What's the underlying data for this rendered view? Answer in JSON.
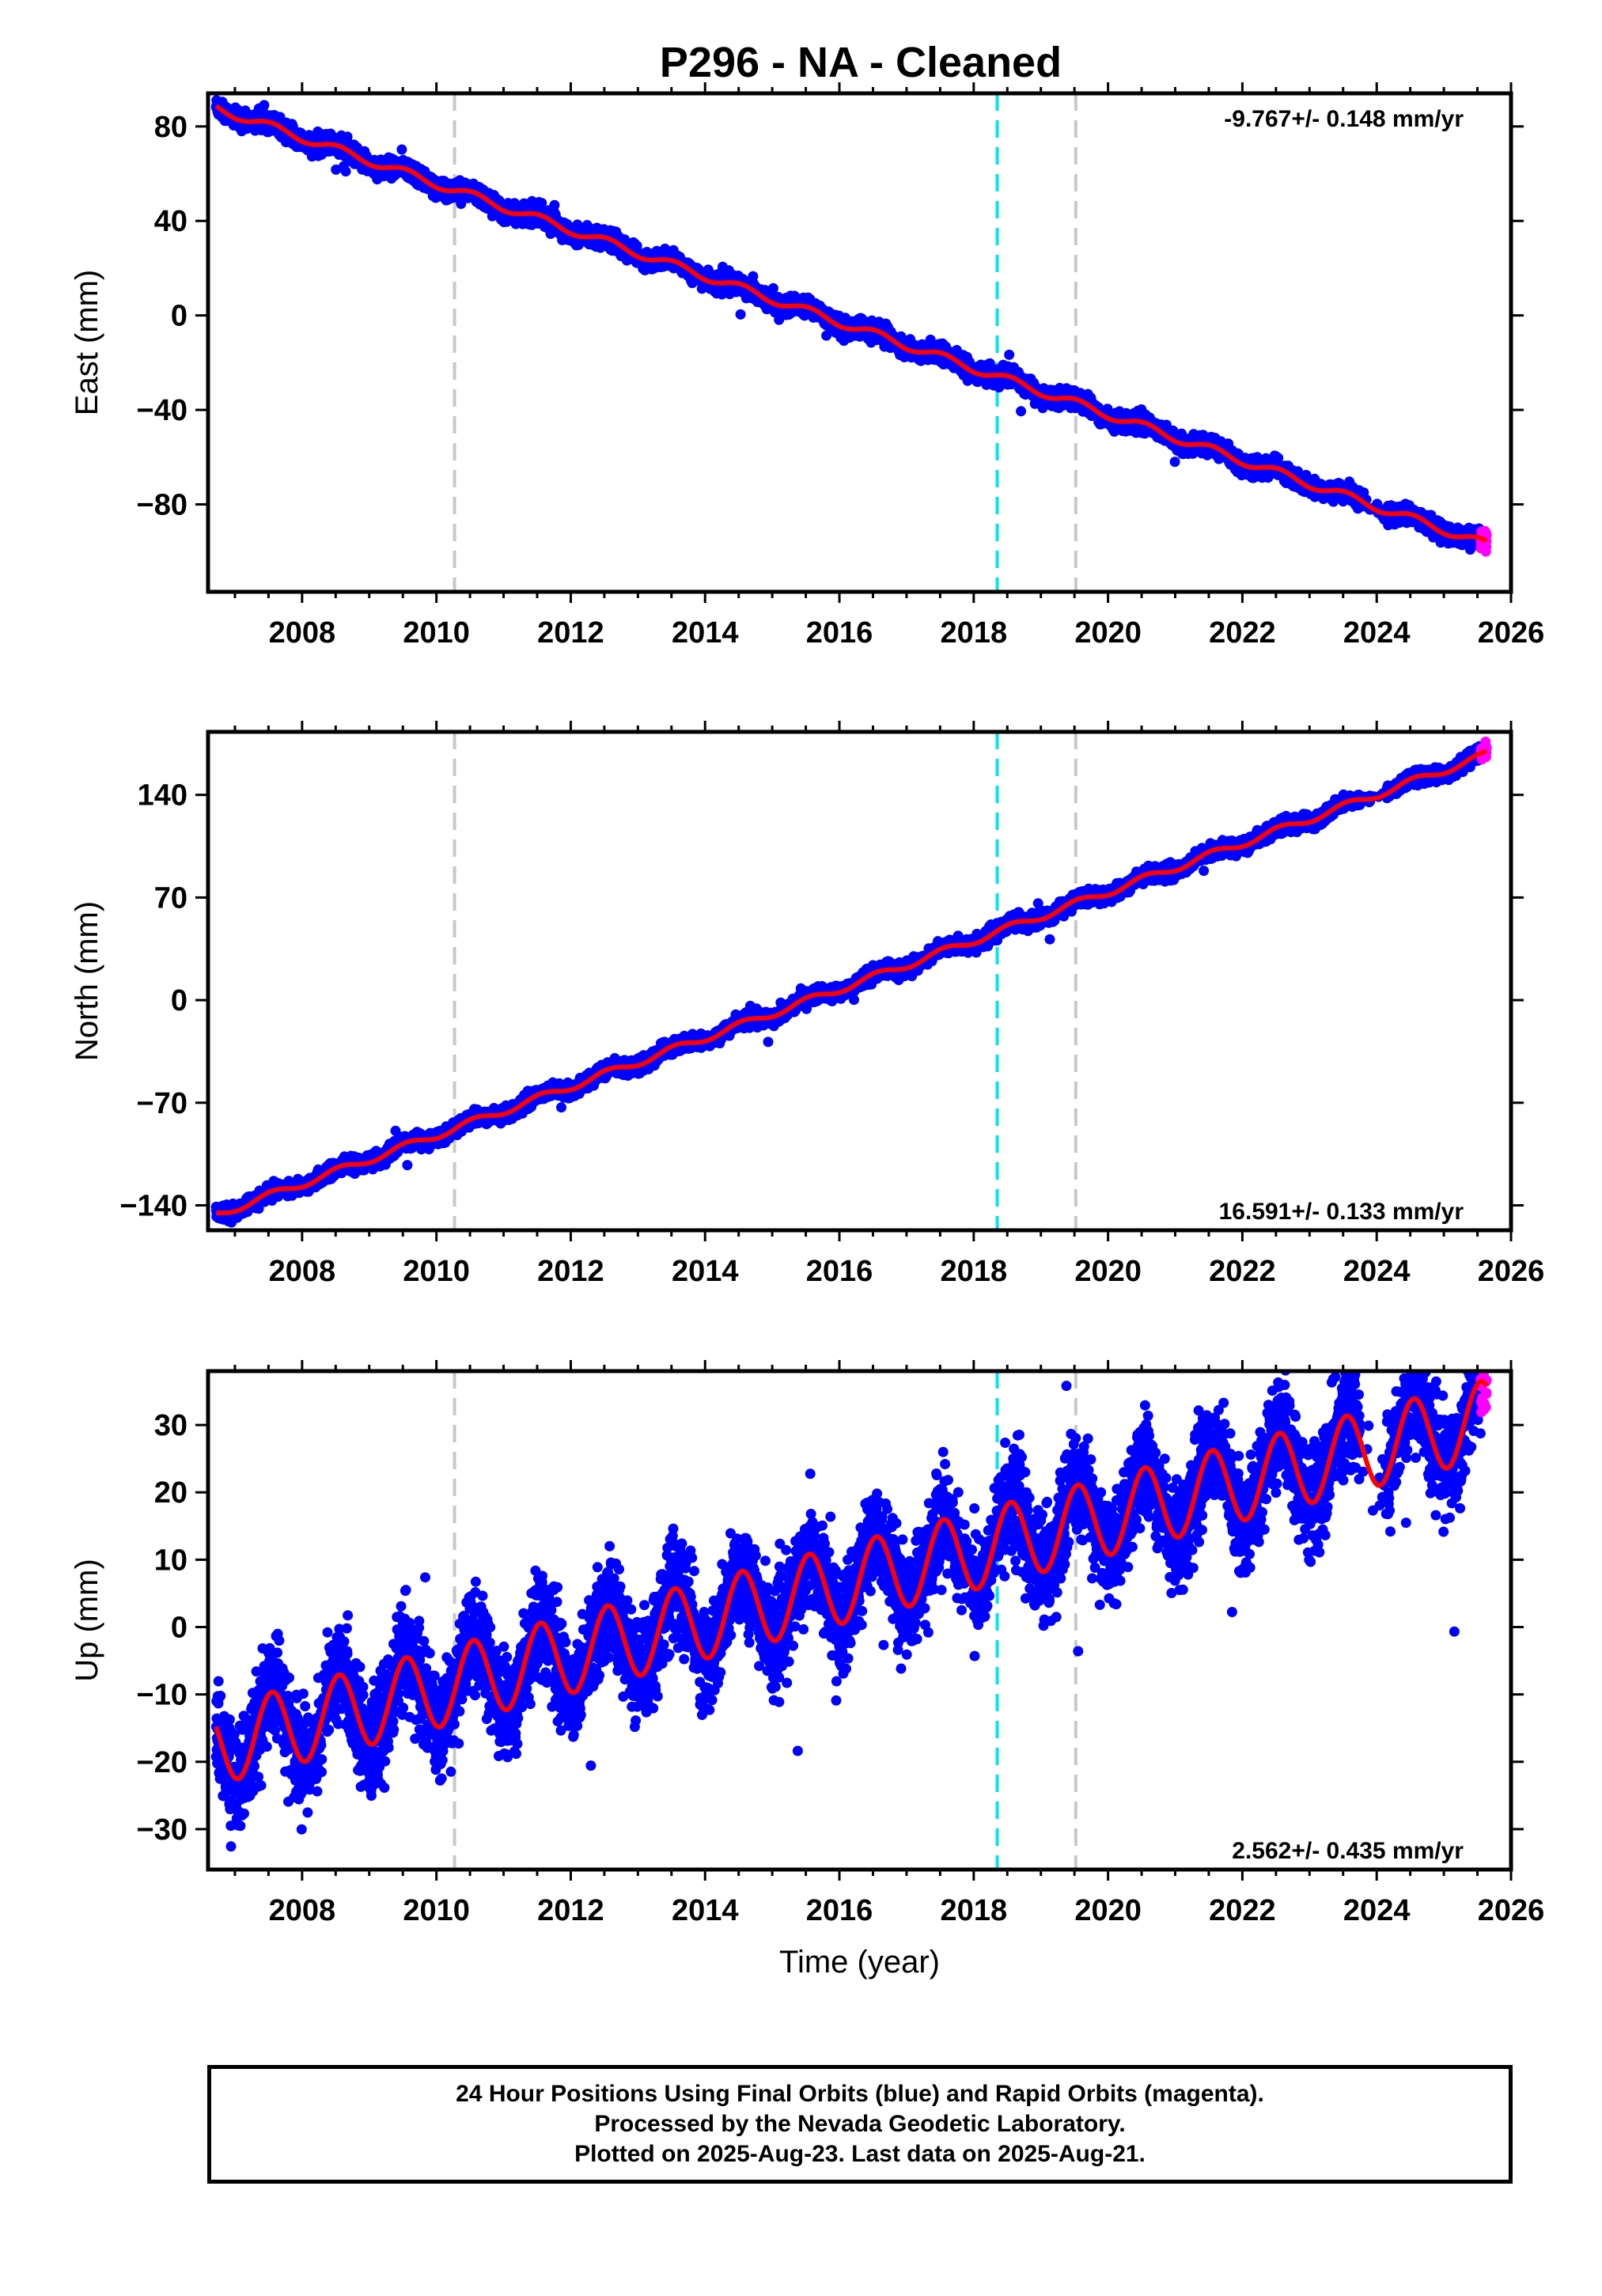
{
  "title": "P296  - NA - Cleaned",
  "footer": {
    "line1": "24 Hour Positions Using Final Orbits (blue) and Rapid Orbits (magenta).",
    "line2": "Processed by the Nevada Geodetic Laboratory.",
    "line3": "Plotted on 2025-Aug-23. Last data on 2025-Aug-21."
  },
  "colors": {
    "final_orbits": "#0000ff",
    "rapid_orbits": "#ff00ff",
    "model_fit": "#ff0000",
    "equipment_change": "#c8c8c8",
    "earthquake": "#00e5ee"
  },
  "chart_data": [
    {
      "type": "scatter",
      "component": "east",
      "ylabel": "East (mm)",
      "xlabel": "",
      "xlim": [
        2006.6,
        2026.0
      ],
      "ylim": [
        -117,
        94
      ],
      "xticks": [
        2008,
        2010,
        2012,
        2014,
        2016,
        2018,
        2020,
        2022,
        2024,
        2026
      ],
      "yticks": [
        80,
        40,
        0,
        -40,
        -80
      ],
      "ytick_labels": [
        "80",
        "40",
        "0",
        "−40",
        "−80"
      ],
      "rate_label": "-9.767+/- 0.148 mm/yr",
      "rate_position": "top-right",
      "trend": {
        "rate": -9.767,
        "start_x": 2006.75,
        "start_y": 87.5,
        "annual_amp": 1.8,
        "scatter": 1.8
      },
      "vertical_lines": [
        {
          "x": 2010.27,
          "kind": "equipment_change"
        },
        {
          "x": 2018.35,
          "kind": "earthquake"
        },
        {
          "x": 2019.52,
          "kind": "equipment_change"
        }
      ],
      "data_start": 2006.72,
      "data_end": 2025.55,
      "rapid_start": 2025.55,
      "rapid_end": 2025.64
    },
    {
      "type": "scatter",
      "component": "north",
      "ylabel": "North (mm)",
      "xlabel": "",
      "xlim": [
        2006.6,
        2026.0
      ],
      "ylim": [
        -157,
        183
      ],
      "xticks": [
        2008,
        2010,
        2012,
        2014,
        2016,
        2018,
        2020,
        2022,
        2024,
        2026
      ],
      "yticks": [
        140,
        70,
        0,
        -70,
        -140
      ],
      "ytick_labels": [
        "140",
        "70",
        "0",
        "−70",
        "−140"
      ],
      "rate_label": "16.591+/- 0.133 mm/yr",
      "rate_position": "bottom-right",
      "trend": {
        "rate": 16.591,
        "start_x": 2006.75,
        "start_y": -146,
        "annual_amp": 2.5,
        "scatter": 2.3
      },
      "vertical_lines": [
        {
          "x": 2010.27,
          "kind": "equipment_change"
        },
        {
          "x": 2018.35,
          "kind": "earthquake"
        },
        {
          "x": 2019.52,
          "kind": "equipment_change"
        }
      ],
      "data_start": 2006.72,
      "data_end": 2025.55,
      "rapid_start": 2025.55,
      "rapid_end": 2025.64
    },
    {
      "type": "scatter",
      "component": "up",
      "ylabel": "Up (mm)",
      "xlabel": "Time (year)",
      "xlim": [
        2006.6,
        2026.0
      ],
      "ylim": [
        -36,
        38
      ],
      "xticks": [
        2008,
        2010,
        2012,
        2014,
        2016,
        2018,
        2020,
        2022,
        2024,
        2026
      ],
      "yticks": [
        30,
        20,
        10,
        0,
        -10,
        -20,
        -30
      ],
      "ytick_labels": [
        "30",
        "20",
        "10",
        "0",
        "−10",
        "−20",
        "−30"
      ],
      "rate_label": "2.562+/- 0.435 mm/yr",
      "rate_position": "bottom-right",
      "trend": {
        "rate": 2.562,
        "start_x": 2006.75,
        "start_y": -17.5,
        "annual_amp": 5.8,
        "scatter": 3.6
      },
      "vertical_lines": [
        {
          "x": 2010.27,
          "kind": "equipment_change"
        },
        {
          "x": 2018.35,
          "kind": "earthquake"
        },
        {
          "x": 2019.52,
          "kind": "equipment_change"
        }
      ],
      "data_start": 2006.72,
      "data_end": 2025.55,
      "rapid_start": 2025.55,
      "rapid_end": 2025.64
    }
  ]
}
